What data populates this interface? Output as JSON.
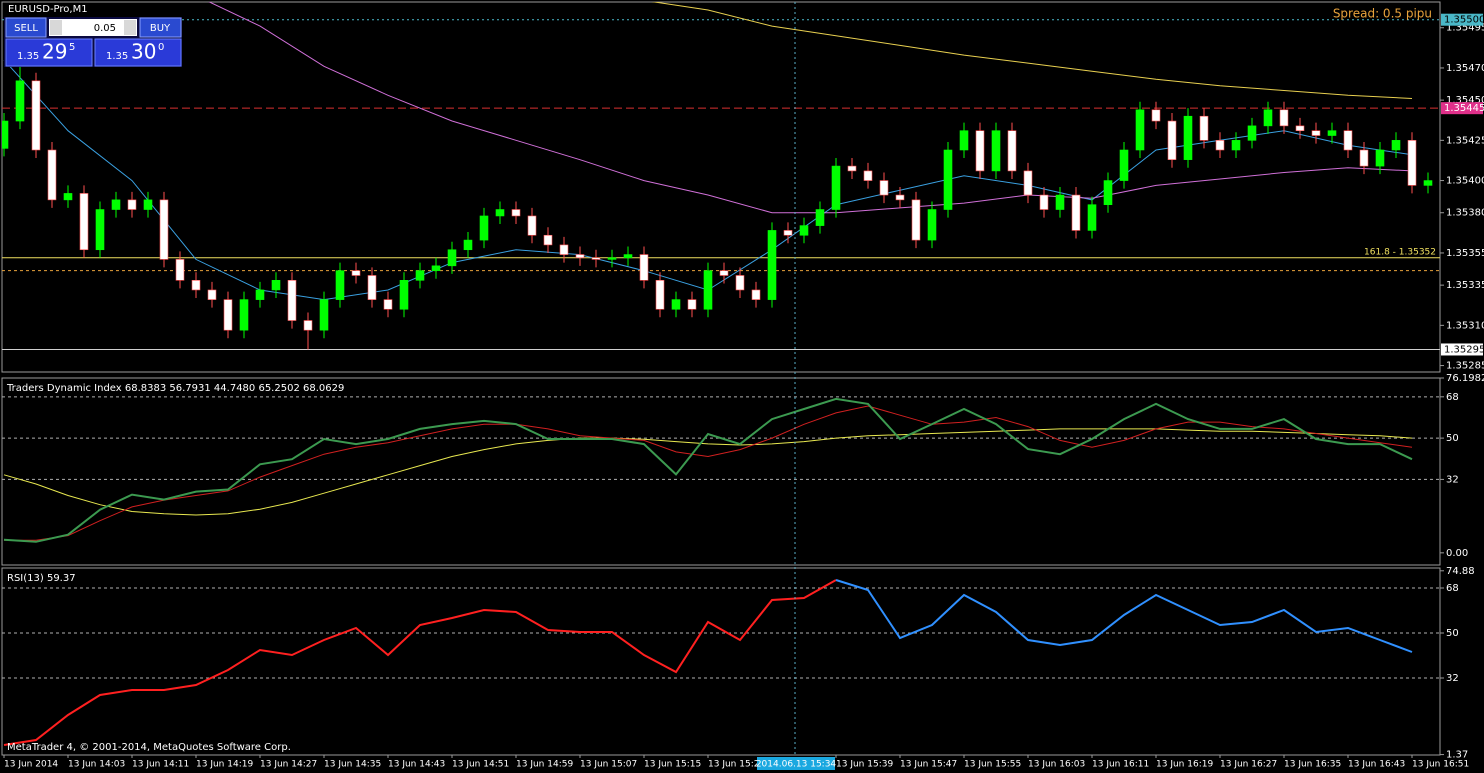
{
  "window": {
    "spread": "Spread: 0.5 pipu",
    "footer": "MetaTrader 4, © 2001-2014, MetaQuotes Software Corp.",
    "crosshair_label": "2014.06.13 15:34"
  },
  "trade_panel": {
    "sell": "SELL",
    "buy": "BUY",
    "lot": "0.05",
    "bid": {
      "big": "1.35",
      "pips": "29",
      "frac": "5"
    },
    "ask": {
      "big": "1.35",
      "pips": "30",
      "frac": "0"
    }
  },
  "chart_data": [
    {
      "type": "candlestick",
      "title": "EURUSD-Pro,M1",
      "categories": [
        "13 Jun 2014",
        null,
        null,
        null,
        "13 Jun 14:03",
        null,
        null,
        null,
        "13 Jun 14:11",
        null,
        null,
        null,
        "13 Jun 14:19",
        null,
        null,
        null,
        "13 Jun 14:27",
        null,
        null,
        null,
        "13 Jun 14:35",
        null,
        null,
        null,
        "13 Jun 14:43",
        null,
        null,
        null,
        "13 Jun 14:51",
        null,
        null,
        null,
        "13 Jun 14:59",
        null,
        null,
        null,
        "13 Jun 15:07",
        null,
        null,
        null,
        "13 Jun 15:15",
        null,
        null,
        null,
        "13 Jun 15:23",
        null,
        null,
        null,
        null,
        null,
        null,
        null,
        "13 Jun 15:39",
        null,
        null,
        null,
        "13 Jun 15:47",
        null,
        null,
        null,
        "13 Jun 15:55",
        null,
        null,
        null,
        "13 Jun 16:03",
        null,
        null,
        null,
        "13 Jun 16:11",
        null,
        null,
        null,
        "13 Jun 16:19",
        null,
        null,
        null,
        "13 Jun 16:27",
        null,
        null,
        null,
        "13 Jun 16:35",
        null,
        null,
        null,
        "13 Jun 16:43",
        null,
        null,
        null,
        "13 Jun 16:51",
        null
      ],
      "open": [
        1.3542,
        1.35437,
        1.35462,
        1.35419,
        1.35388,
        1.35392,
        1.35357,
        1.35382,
        1.35388,
        1.35382,
        1.35388,
        1.35351,
        1.35338,
        1.35332,
        1.35326,
        1.35307,
        1.35326,
        1.35332,
        1.35338,
        1.35313,
        1.35307,
        1.35326,
        1.35344,
        1.35341,
        1.35326,
        1.3532,
        1.35338,
        1.35344,
        1.35347,
        1.35357,
        1.35363,
        1.35378,
        1.35382,
        1.35378,
        1.35366,
        1.3536,
        1.35354,
        1.35352,
        1.35351,
        1.35352,
        1.35354,
        1.35338,
        1.3532,
        1.35326,
        1.3532,
        1.35344,
        1.35341,
        1.35332,
        1.35326,
        1.35369,
        1.35366,
        1.35372,
        1.35382,
        1.35409,
        1.35406,
        1.354,
        1.35391,
        1.35388,
        1.35363,
        1.35382,
        1.35419,
        1.35431,
        1.35406,
        1.35431,
        1.35406,
        1.35391,
        1.35382,
        1.35391,
        1.35369,
        1.35385,
        1.354,
        1.35419,
        1.35444,
        1.35437,
        1.35413,
        1.3544,
        1.35425,
        1.35419,
        1.35425,
        1.35434,
        1.35444,
        1.35434,
        1.35431,
        1.35428,
        1.35431,
        1.35419,
        1.35409,
        1.35419,
        1.35425,
        1.35397
      ],
      "high": [
        1.35442,
        1.35481,
        1.35467,
        1.35424,
        1.35397,
        1.35397,
        1.35387,
        1.35393,
        1.35393,
        1.35393,
        1.35393,
        1.35356,
        1.35343,
        1.35337,
        1.35331,
        1.35331,
        1.35337,
        1.35343,
        1.35343,
        1.35318,
        1.35331,
        1.35349,
        1.35349,
        1.35346,
        1.35331,
        1.35343,
        1.35349,
        1.35352,
        1.35362,
        1.35368,
        1.35383,
        1.35387,
        1.35387,
        1.35383,
        1.35371,
        1.35365,
        1.35359,
        1.35357,
        1.35357,
        1.35359,
        1.35359,
        1.35343,
        1.35331,
        1.35331,
        1.35349,
        1.35349,
        1.35346,
        1.35337,
        1.35374,
        1.35374,
        1.35377,
        1.35387,
        1.35414,
        1.35414,
        1.35411,
        1.35405,
        1.35396,
        1.35393,
        1.35387,
        1.35424,
        1.35436,
        1.35436,
        1.35436,
        1.35436,
        1.35411,
        1.35396,
        1.35396,
        1.35396,
        1.3539,
        1.35405,
        1.35424,
        1.35449,
        1.35449,
        1.35442,
        1.35445,
        1.35445,
        1.3543,
        1.3543,
        1.35439,
        1.35449,
        1.35449,
        1.35439,
        1.35436,
        1.35436,
        1.35436,
        1.35424,
        1.35424,
        1.3543,
        1.3543,
        1.35405
      ],
      "low": [
        1.35415,
        1.35432,
        1.35414,
        1.35383,
        1.35383,
        1.35352,
        1.35352,
        1.35377,
        1.35377,
        1.35377,
        1.35346,
        1.35333,
        1.35327,
        1.35321,
        1.35302,
        1.35302,
        1.35321,
        1.35327,
        1.35308,
        1.35295,
        1.35302,
        1.35321,
        1.35336,
        1.35321,
        1.35315,
        1.35315,
        1.35333,
        1.35339,
        1.35342,
        1.35352,
        1.35358,
        1.35373,
        1.35373,
        1.35361,
        1.35355,
        1.35349,
        1.35347,
        1.35346,
        1.35346,
        1.35347,
        1.35333,
        1.35315,
        1.35315,
        1.35315,
        1.35315,
        1.35336,
        1.35327,
        1.35321,
        1.35321,
        1.35361,
        1.35361,
        1.35367,
        1.35377,
        1.35401,
        1.35395,
        1.35386,
        1.35383,
        1.35358,
        1.35358,
        1.35377,
        1.35414,
        1.35401,
        1.35401,
        1.35401,
        1.35386,
        1.35377,
        1.35377,
        1.35364,
        1.35364,
        1.3538,
        1.35395,
        1.35414,
        1.35432,
        1.35408,
        1.35408,
        1.3542,
        1.35414,
        1.35414,
        1.3542,
        1.35429,
        1.35429,
        1.35426,
        1.35423,
        1.35423,
        1.35414,
        1.35404,
        1.35404,
        1.35414,
        1.35392,
        1.35392
      ],
      "close": [
        1.35437,
        1.35462,
        1.35419,
        1.35388,
        1.35392,
        1.35357,
        1.35382,
        1.35388,
        1.35382,
        1.35388,
        1.35351,
        1.35338,
        1.35332,
        1.35326,
        1.35307,
        1.35326,
        1.35332,
        1.35338,
        1.35313,
        1.35307,
        1.35326,
        1.35344,
        1.35341,
        1.35326,
        1.3532,
        1.35338,
        1.35344,
        1.35347,
        1.35357,
        1.35363,
        1.35378,
        1.35382,
        1.35378,
        1.35366,
        1.3536,
        1.35354,
        1.35352,
        1.35351,
        1.35352,
        1.35354,
        1.35338,
        1.3532,
        1.35326,
        1.3532,
        1.35344,
        1.35341,
        1.35332,
        1.35326,
        1.35369,
        1.35366,
        1.35372,
        1.35382,
        1.35409,
        1.35406,
        1.354,
        1.35391,
        1.35388,
        1.35363,
        1.35382,
        1.35419,
        1.35431,
        1.35406,
        1.35431,
        1.35406,
        1.35391,
        1.35382,
        1.35391,
        1.35369,
        1.35385,
        1.354,
        1.35419,
        1.35444,
        1.35437,
        1.35413,
        1.3544,
        1.35425,
        1.35419,
        1.35425,
        1.35434,
        1.35444,
        1.35434,
        1.35431,
        1.35428,
        1.35431,
        1.35419,
        1.35409,
        1.35419,
        1.35425,
        1.35397,
        1.354
      ],
      "up_color": "#00ff00",
      "down_color": "#ffffff",
      "down_wick": "#ff5050",
      "ylim": [
        1.35281,
        1.35511
      ],
      "yticks": [
        1.35495,
        {
          "value": 1.3547,
          "label": "1.35470"
        },
        {
          "value": 1.3545,
          "label": "1.35450"
        },
        1.35425,
        {
          "value": 1.354,
          "label": "1.35400"
        },
        {
          "value": 1.3538,
          "label": "1.35380"
        },
        1.35355,
        1.35335,
        {
          "value": 1.3531,
          "label": "1.35310"
        },
        1.35285
      ],
      "overlays": [
        {
          "color": "#3aa0e0",
          "values": [
            1.35475,
            1.35431,
            1.354,
            1.35351,
            1.35332,
            1.35326,
            1.35332,
            1.35349,
            1.35357,
            1.35354,
            1.35344,
            1.35332,
            1.35357,
            1.35385,
            1.35394,
            1.35403,
            1.35397,
            1.35388,
            1.35419,
            1.35425,
            1.35431,
            1.35422,
            1.35416
          ]
        },
        {
          "color": "#d070d8",
          "values": [
            1.3556,
            1.35545,
            1.3553,
            1.35515,
            1.35496,
            1.35471,
            1.35453,
            1.35437,
            1.35425,
            1.35413,
            1.354,
            1.35391,
            1.3538,
            1.3538,
            1.35383,
            1.35386,
            1.35391,
            1.35389,
            1.35397,
            1.35401,
            1.35405,
            1.35408,
            1.35406
          ]
        },
        {
          "color": "#e8d050",
          "values": [
            null,
            null,
            null,
            null,
            null,
            null,
            null,
            null,
            null,
            1.35518,
            1.35512,
            1.35506,
            1.35496,
            1.3549,
            1.35484,
            1.35478,
            1.35473,
            1.35468,
            1.35463,
            1.35459,
            1.35456,
            1.35453,
            1.35451
          ]
        }
      ],
      "levels": [
        {
          "value": 1.355,
          "color": "#4ab8c8",
          "dash": "2 3",
          "tag": "1.35500",
          "tag_bg": "#4ab8c8",
          "tag_fg": "#000000"
        },
        {
          "value": 1.35445,
          "color": "#d83030",
          "dash": "8 4",
          "tag": "1.35445",
          "tag_bg": "#e0308a",
          "tag_fg": "#ffffff"
        },
        {
          "value": 1.35352,
          "color": "#f0e060",
          "dash": "",
          "text": "161.8 - 1.35352"
        },
        {
          "value": 1.35344,
          "color": "#e8a33c",
          "dash": "3 3"
        },
        {
          "value": 1.35295,
          "color": "#d0d0d0",
          "dash": "",
          "tag": "1.35295",
          "tag_bg": "#ffffff",
          "tag_fg": "#000000"
        }
      ]
    },
    {
      "type": "line",
      "title": "Traders Dynamic Index 68.8383 56.7931 44.7480 65.2502 68.0629",
      "ylim": [
        -5.3,
        76.2
      ],
      "yticks": [
        76.1982,
        68,
        50,
        32,
        {
          "value": 0,
          "label": "0.00"
        }
      ],
      "levels": [
        68,
        50,
        32
      ],
      "series": [
        {
          "color": "#e8e850",
          "values": [
            34,
            30,
            25,
            21,
            18,
            17,
            16.5,
            17,
            19,
            22,
            26,
            30,
            34,
            38,
            42,
            45,
            47.5,
            49,
            50,
            50,
            49.5,
            48.5,
            47.5,
            47,
            47.5,
            48.5,
            50,
            51,
            51.5,
            52,
            52.5,
            53,
            53.5,
            54,
            54,
            54,
            54,
            53.5,
            53,
            53,
            52.5,
            52,
            51.5,
            51,
            50
          ]
        },
        {
          "color": "#d02020",
          "values": [
            5.5,
            5.5,
            7.5,
            14,
            20,
            23,
            25,
            27,
            33,
            38,
            43,
            46,
            48,
            51,
            54,
            56,
            56,
            54,
            51,
            50,
            49,
            44,
            42,
            45,
            50,
            56,
            61,
            64,
            60,
            56,
            57,
            59,
            55,
            49,
            46,
            49,
            54,
            57,
            57,
            55,
            54,
            52,
            50,
            48,
            46
          ]
        },
        {
          "color": "#3c9a50",
          "values": [
            5.7,
            4.8,
            7.9,
            18.8,
            25.4,
            23.2,
            26.7,
            27.6,
            38.6,
            40.8,
            49.6,
            47.4,
            49.6,
            54.0,
            56.1,
            57.5,
            56.1,
            49.6,
            49.6,
            49.6,
            47.4,
            34.2,
            51.8,
            47.4,
            58.3,
            62.7,
            67.1,
            64.9,
            49.6,
            56.1,
            62.7,
            56.1,
            45.2,
            43.0,
            49.6,
            58.3,
            64.9,
            58.3,
            54.0,
            54.0,
            58.3,
            49.6,
            47.4,
            47.4,
            40.8
          ]
        }
      ]
    },
    {
      "type": "line",
      "title": "RSI(13) 59.37",
      "ylim": [
        1.2,
        76
      ],
      "yticks": [
        74.88,
        68,
        50,
        32,
        1.37
      ],
      "levels": [
        68,
        50,
        32
      ],
      "series": [
        {
          "color": "#ff2020",
          "values": [
            5.2,
            7.2,
            17.2,
            25.2,
            27.2,
            27.2,
            29.2,
            35.2,
            43.2,
            41.2,
            47.2,
            52.0,
            41.2,
            53.2,
            56.0,
            59.2,
            58.4,
            51.2,
            50.4,
            50.4,
            41.2,
            34.4,
            54.4,
            47.2,
            63.2,
            64.0,
            71.2,
            null,
            null,
            null,
            null,
            null,
            null,
            null,
            null,
            null,
            null,
            null,
            null,
            null,
            null,
            null,
            null,
            null,
            null
          ]
        },
        {
          "color": "#3090ff",
          "values": [
            null,
            null,
            null,
            null,
            null,
            null,
            null,
            null,
            null,
            null,
            null,
            null,
            null,
            null,
            null,
            null,
            null,
            null,
            null,
            null,
            null,
            null,
            null,
            null,
            null,
            null,
            71.2,
            67.2,
            48.0,
            53.2,
            65.2,
            58.4,
            47.2,
            45.2,
            47.2,
            57.2,
            65.2,
            59.2,
            53.2,
            54.4,
            59.2,
            50.4,
            52.0,
            47.2,
            42.4
          ]
        }
      ]
    }
  ]
}
